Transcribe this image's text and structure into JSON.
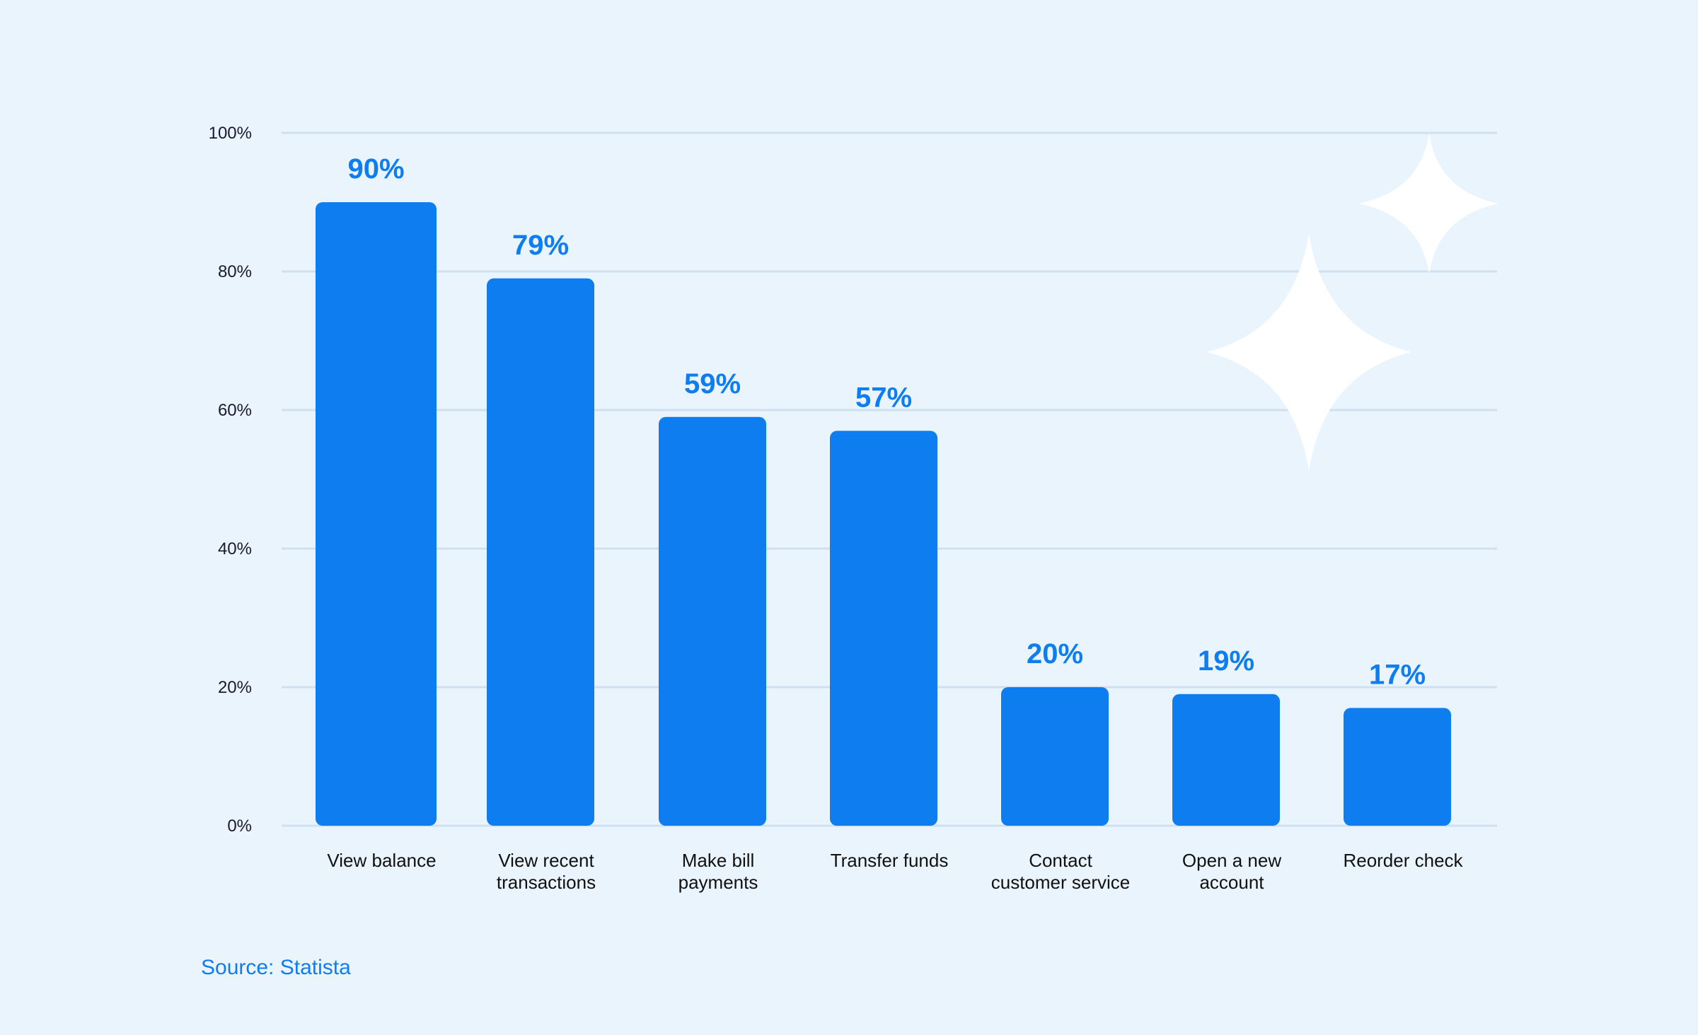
{
  "colors": {
    "background": "#EAF4FD",
    "bar": "#0E7DF0",
    "value_label": "#0E7DF0",
    "grid": "#CFE1EF",
    "source_text": "#0E7DF0",
    "sparkle": "#FFFFFF"
  },
  "chart_data": {
    "type": "bar",
    "categories": [
      [
        "View  balance"
      ],
      [
        "View recent",
        "transactions"
      ],
      [
        "Make bill",
        "payments"
      ],
      [
        "Transfer funds"
      ],
      [
        "Contact",
        "customer service"
      ],
      [
        "Open a new",
        "account"
      ],
      [
        "Reorder check"
      ]
    ],
    "values": [
      90,
      79,
      59,
      57,
      20,
      19,
      17
    ],
    "value_labels": [
      "90%",
      "79%",
      "59%",
      "57%",
      "20%",
      "19%",
      "17%"
    ],
    "y_ticks": [
      0,
      20,
      40,
      60,
      80,
      100
    ],
    "y_tick_labels": [
      "0%",
      "20%",
      "40%",
      "60%",
      "80%",
      "100%"
    ],
    "ylim": [
      0,
      100
    ],
    "grid": true,
    "title": "",
    "xlabel": "",
    "ylabel": ""
  },
  "source": "Source: Statista"
}
